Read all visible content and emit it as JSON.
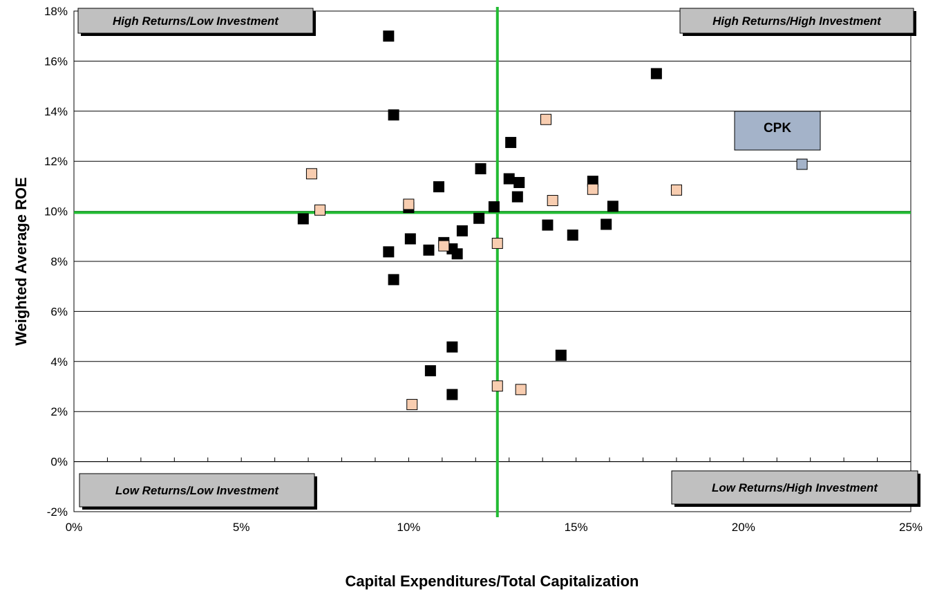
{
  "chart_data": {
    "type": "scatter",
    "xlabel": "Capital Expenditures/Total Capitalization",
    "ylabel": "Weighted Average ROE",
    "xlim": [
      0,
      0.25
    ],
    "ylim": [
      -0.02,
      0.18
    ],
    "x_ticks": [
      0,
      0.05,
      0.1,
      0.15,
      0.2,
      0.25
    ],
    "x_tick_labels": [
      "0%",
      "5%",
      "10%",
      "15%",
      "20%",
      "25%"
    ],
    "y_ticks": [
      -0.02,
      0,
      0.02,
      0.04,
      0.06,
      0.08,
      0.1,
      0.12,
      0.14,
      0.16,
      0.18
    ],
    "y_tick_labels": [
      "-2%",
      "0%",
      "2%",
      "4%",
      "6%",
      "8%",
      "10%",
      "12%",
      "14%",
      "16%",
      "18%"
    ],
    "x_minor_step": 0.01,
    "grid": "horizontal",
    "reference_lines": {
      "x": 0.1265,
      "y": 0.0995,
      "color": "#22bb33"
    },
    "quadrant_labels": {
      "top_left": "High Returns/Low Investment",
      "top_right": "High Returns/High Investment",
      "bottom_left": "Low Returns/Low Investment",
      "bottom_right": "Low Returns/High Investment"
    },
    "series": [
      {
        "color": "#000000",
        "points": [
          [
            0.094,
            0.17
          ],
          [
            0.0955,
            0.1385
          ],
          [
            0.174,
            0.155
          ],
          [
            0.0685,
            0.097
          ],
          [
            0.094,
            0.0838
          ],
          [
            0.0955,
            0.0727
          ],
          [
            0.1,
            0.1015
          ],
          [
            0.1005,
            0.089
          ],
          [
            0.106,
            0.0845
          ],
          [
            0.109,
            0.1098
          ],
          [
            0.1105,
            0.0875
          ],
          [
            0.113,
            0.085
          ],
          [
            0.1145,
            0.083
          ],
          [
            0.116,
            0.0922
          ],
          [
            0.121,
            0.0972
          ],
          [
            0.1215,
            0.117
          ],
          [
            0.1255,
            0.1018
          ],
          [
            0.1305,
            0.1275
          ],
          [
            0.13,
            0.113
          ],
          [
            0.133,
            0.1115
          ],
          [
            0.1325,
            0.1058
          ],
          [
            0.1415,
            0.0945
          ],
          [
            0.149,
            0.0905
          ],
          [
            0.155,
            0.112
          ],
          [
            0.159,
            0.0948
          ],
          [
            0.161,
            0.102
          ],
          [
            0.1455,
            0.0425
          ],
          [
            0.113,
            0.0458
          ],
          [
            0.1065,
            0.0363
          ],
          [
            0.113,
            0.0268
          ]
        ]
      },
      {
        "color": "#f8cdb0",
        "points": [
          [
            0.071,
            0.115
          ],
          [
            0.0735,
            0.1005
          ],
          [
            0.1,
            0.1028
          ],
          [
            0.1105,
            0.0862
          ],
          [
            0.1265,
            0.0872
          ],
          [
            0.141,
            0.1367
          ],
          [
            0.143,
            0.1043
          ],
          [
            0.155,
            0.1088
          ],
          [
            0.18,
            0.1085
          ],
          [
            0.101,
            0.0228
          ],
          [
            0.1265,
            0.0302
          ],
          [
            0.1335,
            0.0288
          ]
        ]
      },
      {
        "color": "#a4b3c9",
        "points": [
          [
            0.2175,
            0.1188
          ]
        ]
      }
    ],
    "annotations": [
      {
        "text": "CPK",
        "target": [
          0.2175,
          0.1188
        ]
      }
    ]
  }
}
